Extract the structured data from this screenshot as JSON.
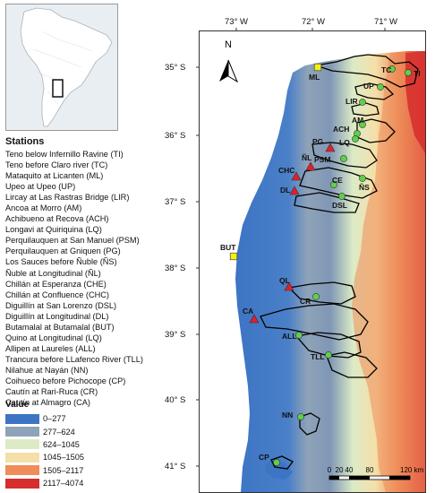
{
  "map": {
    "lon_ticks": [
      "73° W",
      "72° W",
      "71° W"
    ],
    "lat_ticks": [
      "35° S",
      "36° S",
      "37° S",
      "38° S",
      "39° S",
      "40° S",
      "41° S"
    ],
    "north_label": "N",
    "scalebar_labels": [
      "0",
      "20",
      "40",
      "80",
      "120 km"
    ]
  },
  "stations_title": "Stations",
  "stations": [
    "Teno below Infernillo Ravine (TI)",
    "Teno before Claro river (TC)",
    "Mataquito at Licanten (ML)",
    "Upeo at Upeo (UP)",
    "Lircay at Las Rastras  Bridge (LIR)",
    "Ancoa at Morro (AM)",
    "Achibueno at Recova (ACH)",
    "Longavi at Quiriquina (LQ)",
    "Perquilauquen at San Manuel (PSM)",
    "Perquilauquen at Gniquen (PG)",
    "Los Sauces before Ñuble (ÑS)",
    "Ñuble at Longitudinal (ÑL)",
    "Chillán at Esperanza (CHE)",
    "Chillán at Confluence (CHC)",
    "Diguillín at San Lorenzo (DSL)",
    "Diguillín at Longitudinal (DL)",
    "Butamalal at Butamalal (BUT)",
    "Quino at Longitudinal (LQ)",
    "Allipen at Laureles (ALL)",
    "Trancura before LLafenco River (TLL)",
    "Nilahue at Nayán (NN)",
    "Coihueco before Pichocope (CP)",
    "Cautín at Rari-Ruca (CR)",
    "Cautín at Almagro (CA)"
  ],
  "legend": {
    "title": "Value",
    "items": [
      {
        "label": "0–277",
        "color": "#3d74c4"
      },
      {
        "label": "277–624",
        "color": "#8fa3b8"
      },
      {
        "label": "624–1045",
        "color": "#dcebc6"
      },
      {
        "label": "1045–1505",
        "color": "#f5dfa8"
      },
      {
        "label": "1505–2117",
        "color": "#ee8c5a"
      },
      {
        "label": "2117–4074",
        "color": "#d62d2d"
      }
    ]
  },
  "station_markers": [
    {
      "code": "TI",
      "symbol": "circle",
      "color": "#5fd04a"
    },
    {
      "code": "TC",
      "symbol": "circle",
      "color": "#5fd04a"
    },
    {
      "code": "ML",
      "symbol": "square",
      "color": "#f5ef1a"
    },
    {
      "code": "UP",
      "symbol": "circle",
      "color": "#5fd04a"
    },
    {
      "code": "LIR",
      "symbol": "circle",
      "color": "#5fd04a"
    },
    {
      "code": "AM",
      "symbol": "circle",
      "color": "#5fd04a"
    },
    {
      "code": "ACH",
      "symbol": "circle",
      "color": "#5fd04a"
    },
    {
      "code": "LQ",
      "symbol": "circle",
      "color": "#5fd04a"
    },
    {
      "code": "PSM",
      "symbol": "circle",
      "color": "#5fd04a"
    },
    {
      "code": "PG",
      "symbol": "triangle",
      "color": "#e0202a"
    },
    {
      "code": "ÑS",
      "symbol": "circle",
      "color": "#5fd04a"
    },
    {
      "code": "ÑL",
      "symbol": "triangle",
      "color": "#e0202a"
    },
    {
      "code": "CE",
      "symbol": "circle",
      "color": "#5fd04a"
    },
    {
      "code": "CHC",
      "symbol": "triangle",
      "color": "#e0202a"
    },
    {
      "code": "DSL",
      "symbol": "circle",
      "color": "#5fd04a"
    },
    {
      "code": "DL",
      "symbol": "triangle",
      "color": "#e0202a"
    },
    {
      "code": "BUT",
      "symbol": "square",
      "color": "#f5ef1a"
    },
    {
      "code": "QL",
      "symbol": "triangle",
      "color": "#e0202a"
    },
    {
      "code": "CR",
      "symbol": "circle",
      "color": "#5fd04a"
    },
    {
      "code": "CA",
      "symbol": "triangle",
      "color": "#e0202a"
    },
    {
      "code": "ALL",
      "symbol": "circle",
      "color": "#5fd04a"
    },
    {
      "code": "TLL",
      "symbol": "circle",
      "color": "#5fd04a"
    },
    {
      "code": "NN",
      "symbol": "circle",
      "color": "#5fd04a"
    },
    {
      "code": "CP",
      "symbol": "circle",
      "color": "#5fd04a"
    }
  ]
}
